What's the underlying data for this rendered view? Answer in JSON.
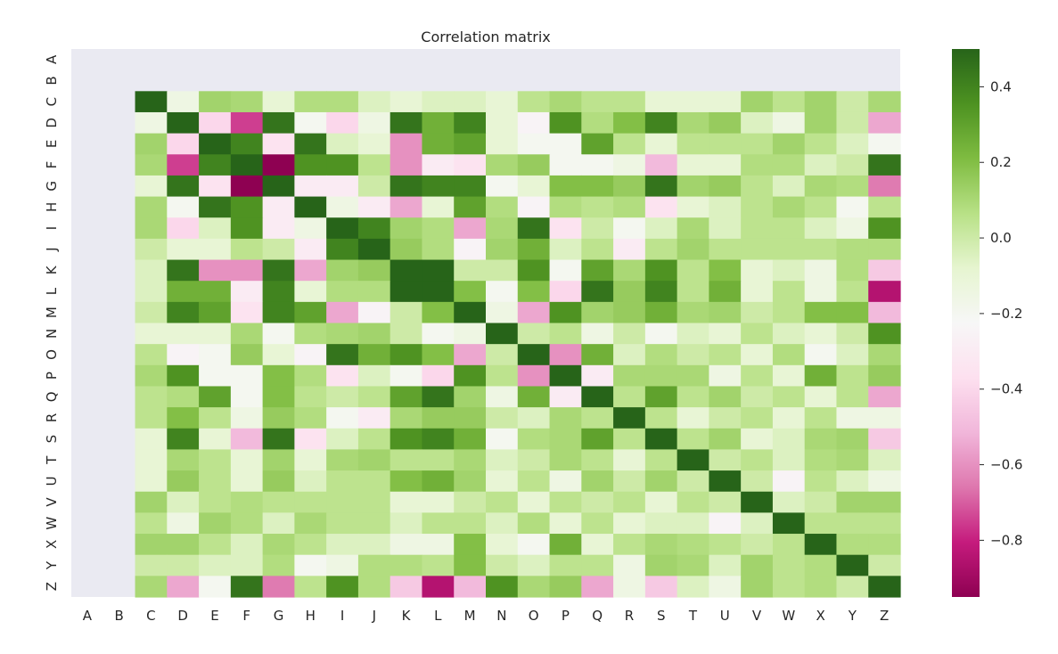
{
  "chart_data": {
    "type": "heatmap",
    "title": "Correlation matrix",
    "x_labels": [
      "A",
      "B",
      "C",
      "D",
      "E",
      "F",
      "G",
      "H",
      "I",
      "J",
      "K",
      "L",
      "M",
      "N",
      "O",
      "P",
      "Q",
      "R",
      "S",
      "T",
      "U",
      "V",
      "W",
      "X",
      "Y",
      "Z"
    ],
    "y_labels": [
      "A",
      "B",
      "C",
      "D",
      "E",
      "F",
      "G",
      "H",
      "I",
      "J",
      "K",
      "L",
      "M",
      "N",
      "O",
      "P",
      "Q",
      "R",
      "S",
      "T",
      "U",
      "V",
      "W",
      "X",
      "Y",
      "Z"
    ],
    "colormap": "PiYG",
    "vmin": -0.95,
    "vmax": 0.5,
    "nan_color": "#eaeaf2",
    "colorbar_ticks": [
      "0.4",
      "0.2",
      "0.0",
      "−0.2",
      "−0.4",
      "−0.6",
      "−0.8"
    ],
    "colorbar_tick_values": [
      0.4,
      0.2,
      0.0,
      -0.2,
      -0.4,
      -0.6,
      -0.8
    ],
    "matrix": [
      [
        null,
        null,
        null,
        null,
        null,
        null,
        null,
        null,
        null,
        null,
        null,
        null,
        null,
        null,
        null,
        null,
        null,
        null,
        null,
        null,
        null,
        null,
        null,
        null,
        null,
        null
      ],
      [
        null,
        null,
        null,
        null,
        null,
        null,
        null,
        null,
        null,
        null,
        null,
        null,
        null,
        null,
        null,
        null,
        null,
        null,
        null,
        null,
        null,
        null,
        null,
        null,
        null,
        null
      ],
      [
        null,
        null,
        1.0,
        -0.15,
        0.12,
        0.1,
        -0.1,
        0.08,
        0.08,
        -0.05,
        -0.1,
        -0.05,
        -0.05,
        -0.1,
        0.05,
        0.1,
        0.05,
        0.05,
        -0.1,
        -0.1,
        -0.1,
        0.12,
        0.05,
        0.12,
        0.0,
        0.1
      ],
      [
        null,
        null,
        -0.15,
        1.0,
        -0.4,
        -0.75,
        0.45,
        -0.2,
        -0.4,
        -0.15,
        0.45,
        0.25,
        0.4,
        -0.1,
        -0.25,
        0.35,
        0.08,
        0.2,
        0.4,
        0.1,
        0.15,
        -0.05,
        -0.15,
        0.12,
        0.0,
        -0.55
      ],
      [
        null,
        null,
        0.12,
        -0.4,
        1.0,
        0.4,
        -0.35,
        0.45,
        -0.05,
        -0.1,
        -0.6,
        0.25,
        0.3,
        -0.1,
        -0.2,
        -0.2,
        0.3,
        0.05,
        -0.1,
        0.05,
        0.05,
        0.05,
        0.12,
        0.05,
        -0.05,
        -0.2
      ],
      [
        null,
        null,
        0.1,
        -0.75,
        0.4,
        1.0,
        -0.95,
        0.35,
        0.35,
        0.05,
        -0.6,
        -0.3,
        -0.35,
        0.1,
        0.15,
        -0.2,
        -0.2,
        -0.15,
        -0.5,
        -0.1,
        -0.1,
        0.08,
        0.08,
        -0.05,
        0.0,
        0.45
      ],
      [
        null,
        null,
        -0.1,
        0.45,
        -0.35,
        -0.95,
        1.0,
        -0.3,
        -0.3,
        0.0,
        0.45,
        0.4,
        0.4,
        -0.2,
        -0.1,
        0.2,
        0.2,
        0.15,
        0.45,
        0.12,
        0.15,
        0.05,
        -0.05,
        0.1,
        0.08,
        -0.65
      ],
      [
        null,
        null,
        0.1,
        -0.2,
        0.45,
        0.35,
        -0.3,
        1.0,
        -0.15,
        -0.3,
        -0.55,
        -0.1,
        0.3,
        0.08,
        -0.25,
        0.08,
        0.05,
        0.08,
        -0.35,
        -0.1,
        -0.05,
        0.05,
        0.1,
        0.05,
        -0.2,
        0.05
      ],
      [
        null,
        null,
        0.1,
        -0.4,
        -0.05,
        0.35,
        -0.3,
        -0.15,
        1.0,
        0.4,
        0.12,
        0.08,
        -0.55,
        0.1,
        0.45,
        -0.35,
        0.0,
        -0.2,
        -0.05,
        0.1,
        -0.05,
        0.05,
        0.05,
        -0.05,
        -0.15,
        0.35
      ],
      [
        null,
        null,
        0.0,
        -0.1,
        -0.1,
        0.05,
        0.0,
        -0.3,
        0.4,
        1.0,
        0.15,
        0.08,
        -0.25,
        0.12,
        0.25,
        -0.05,
        0.05,
        -0.3,
        0.05,
        0.12,
        0.05,
        0.05,
        0.05,
        0.05,
        0.08,
        0.08
      ],
      [
        null,
        null,
        -0.05,
        0.45,
        -0.6,
        -0.6,
        0.45,
        -0.55,
        0.12,
        0.15,
        1.0,
        1.0,
        0.0,
        0.0,
        0.35,
        -0.2,
        0.3,
        0.1,
        0.35,
        0.05,
        0.2,
        -0.1,
        -0.05,
        -0.15,
        0.08,
        -0.45
      ],
      [
        null,
        null,
        -0.05,
        0.25,
        0.25,
        -0.3,
        0.4,
        -0.1,
        0.08,
        0.08,
        1.0,
        1.0,
        0.2,
        -0.2,
        0.2,
        -0.4,
        0.45,
        0.15,
        0.4,
        0.05,
        0.25,
        -0.1,
        0.05,
        -0.15,
        0.05,
        -0.85
      ],
      [
        null,
        null,
        0.0,
        0.4,
        0.3,
        -0.35,
        0.4,
        0.3,
        -0.55,
        -0.25,
        0.0,
        0.2,
        1.0,
        -0.15,
        -0.55,
        0.35,
        0.12,
        0.15,
        0.25,
        0.1,
        0.12,
        0.0,
        0.05,
        0.2,
        0.2,
        -0.5
      ],
      [
        null,
        null,
        -0.1,
        -0.1,
        -0.1,
        0.1,
        -0.2,
        0.08,
        0.1,
        0.12,
        0.0,
        -0.2,
        -0.15,
        1.0,
        0.0,
        0.05,
        -0.15,
        0.0,
        -0.2,
        -0.05,
        -0.1,
        0.05,
        -0.05,
        -0.1,
        0.0,
        0.35
      ],
      [
        null,
        null,
        0.05,
        -0.25,
        -0.2,
        0.15,
        -0.1,
        -0.25,
        0.45,
        0.25,
        0.35,
        0.2,
        -0.55,
        0.0,
        1.0,
        -0.6,
        0.25,
        -0.05,
        0.08,
        0.0,
        0.05,
        -0.1,
        0.08,
        -0.2,
        -0.05,
        0.1
      ],
      [
        null,
        null,
        0.1,
        0.35,
        -0.2,
        -0.2,
        0.2,
        0.08,
        -0.35,
        -0.05,
        -0.2,
        -0.4,
        0.35,
        0.05,
        -0.6,
        1.0,
        -0.3,
        0.1,
        0.1,
        0.1,
        -0.15,
        0.05,
        -0.1,
        0.25,
        0.05,
        0.15
      ],
      [
        null,
        null,
        0.05,
        0.08,
        0.3,
        -0.2,
        0.2,
        0.05,
        0.0,
        0.05,
        0.3,
        0.45,
        0.12,
        -0.15,
        0.25,
        -0.3,
        1.0,
        0.05,
        0.3,
        0.05,
        0.12,
        0.0,
        0.05,
        -0.1,
        0.05,
        -0.55
      ],
      [
        null,
        null,
        0.05,
        0.2,
        0.05,
        -0.15,
        0.15,
        0.08,
        -0.2,
        -0.3,
        0.1,
        0.15,
        0.15,
        0.0,
        -0.05,
        0.1,
        0.05,
        1.0,
        0.05,
        -0.1,
        0.0,
        0.05,
        -0.1,
        0.05,
        -0.15,
        -0.15
      ],
      [
        null,
        null,
        -0.1,
        0.4,
        -0.1,
        -0.5,
        0.45,
        -0.35,
        -0.05,
        0.05,
        0.35,
        0.4,
        0.25,
        -0.2,
        0.08,
        0.1,
        0.3,
        0.05,
        1.0,
        0.05,
        0.12,
        -0.1,
        -0.05,
        0.1,
        0.12,
        -0.45
      ],
      [
        null,
        null,
        -0.1,
        0.1,
        0.05,
        -0.1,
        0.12,
        -0.1,
        0.1,
        0.12,
        0.05,
        0.05,
        0.1,
        -0.05,
        0.0,
        0.1,
        0.05,
        -0.1,
        0.05,
        1.0,
        0.0,
        0.05,
        -0.05,
        0.08,
        0.1,
        -0.05
      ],
      [
        null,
        null,
        -0.1,
        0.15,
        0.05,
        -0.1,
        0.15,
        -0.05,
        0.05,
        0.05,
        0.2,
        0.25,
        0.12,
        -0.1,
        0.05,
        -0.15,
        0.12,
        0.0,
        0.12,
        0.0,
        1.0,
        0.0,
        -0.25,
        0.05,
        -0.05,
        -0.15
      ],
      [
        null,
        null,
        0.12,
        -0.05,
        0.05,
        0.08,
        0.05,
        0.05,
        0.05,
        0.05,
        -0.1,
        -0.1,
        0.0,
        0.05,
        -0.1,
        0.05,
        0.0,
        0.05,
        -0.1,
        0.05,
        0.0,
        1.0,
        -0.05,
        0.0,
        0.12,
        0.12
      ],
      [
        null,
        null,
        0.05,
        -0.15,
        0.12,
        0.08,
        -0.05,
        0.1,
        0.05,
        0.05,
        -0.05,
        0.05,
        0.05,
        -0.05,
        0.08,
        -0.1,
        0.05,
        -0.1,
        -0.05,
        -0.05,
        -0.25,
        -0.05,
        1.0,
        0.05,
        0.05,
        0.05
      ],
      [
        null,
        null,
        0.12,
        0.12,
        0.05,
        -0.05,
        0.1,
        0.05,
        -0.05,
        -0.05,
        -0.15,
        -0.15,
        0.2,
        -0.1,
        -0.2,
        0.25,
        -0.1,
        0.05,
        0.1,
        0.08,
        0.05,
        0.0,
        0.05,
        1.0,
        0.08,
        0.08
      ],
      [
        null,
        null,
        0.0,
        0.0,
        -0.05,
        -0.05,
        0.08,
        -0.2,
        -0.15,
        0.08,
        0.08,
        0.05,
        0.2,
        0.0,
        -0.05,
        0.05,
        0.05,
        -0.15,
        0.12,
        0.1,
        -0.05,
        0.12,
        0.05,
        0.08,
        1.0,
        0.0
      ],
      [
        null,
        null,
        0.1,
        -0.55,
        -0.2,
        0.45,
        -0.65,
        0.05,
        0.35,
        0.08,
        -0.45,
        -0.85,
        -0.5,
        0.35,
        0.1,
        0.15,
        -0.55,
        -0.15,
        -0.45,
        -0.05,
        -0.15,
        0.12,
        0.05,
        0.08,
        0.0,
        1.0
      ]
    ]
  }
}
